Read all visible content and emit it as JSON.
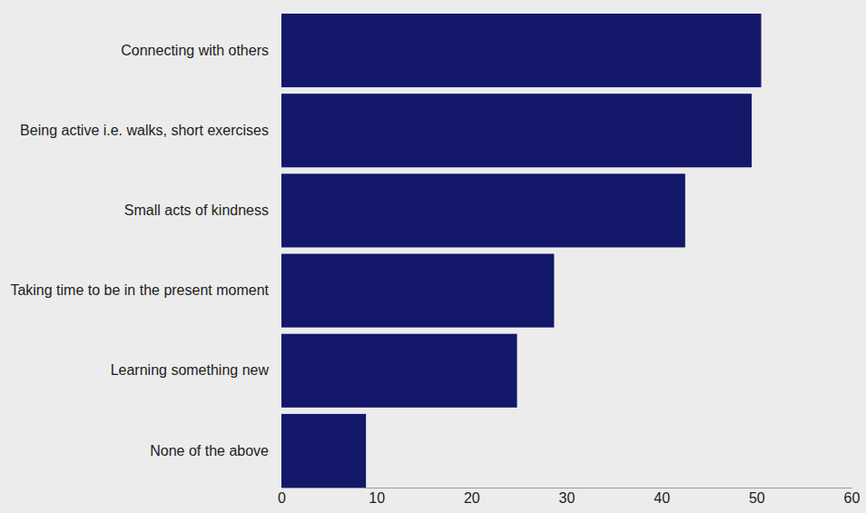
{
  "chart_data": {
    "type": "bar",
    "orientation": "horizontal",
    "categories": [
      "Connecting with others",
      "Being active i.e. walks, short exercises",
      "Small acts of kindness",
      "Taking time to be in the present moment",
      "Learning something new",
      "None of the above"
    ],
    "values": [
      50.5,
      49.5,
      42.5,
      28.7,
      24.8,
      8.9
    ],
    "color": "#13186b",
    "xlim": [
      0,
      60
    ],
    "xticks": [
      0,
      10,
      20,
      30,
      40,
      50,
      60
    ],
    "grid": false
  }
}
